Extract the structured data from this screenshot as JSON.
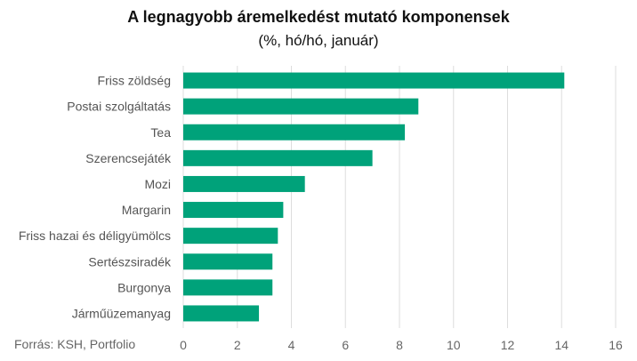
{
  "title": "A legnagyobb áremelkedést mutató komponensek",
  "subtitle": "(%, hó/hó, január)",
  "source": "Forrás: KSH, Portfolio",
  "colors": {
    "bar": "#00a27a",
    "grid": "#dddddd"
  },
  "chart_data": {
    "type": "bar",
    "orientation": "horizontal",
    "title": "A legnagyobb áremelkedést mutató komponensek",
    "subtitle": "(%, hó/hó, január)",
    "categories": [
      "Friss zöldség",
      "Postai szolgáltatás",
      "Tea",
      "Szerencsejáték",
      "Mozi",
      "Margarin",
      "Friss hazai és déligyümölcs",
      "Sertészsiradék",
      "Burgonya",
      "Járműüzemanyag"
    ],
    "values": [
      14.1,
      8.7,
      8.2,
      7.0,
      4.5,
      3.7,
      3.5,
      3.3,
      3.3,
      2.8
    ],
    "xlim": [
      0,
      16
    ],
    "xticks": [
      0,
      2,
      4,
      6,
      8,
      10,
      12,
      14,
      16
    ],
    "grid": "vertical"
  }
}
